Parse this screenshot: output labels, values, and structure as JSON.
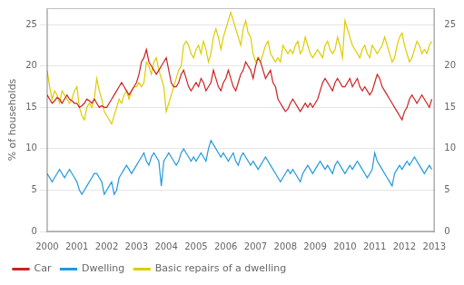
{
  "chart_data": {
    "type": "line",
    "ylabel": "% of households",
    "xlim": [
      2000,
      2013
    ],
    "xticks": [
      2000,
      2001,
      2002,
      2003,
      2004,
      2005,
      2006,
      2007,
      2008,
      2009,
      2010,
      2011,
      2012,
      2013
    ],
    "ylim": [
      0,
      27
    ],
    "yticks": [
      0,
      5,
      10,
      15,
      20,
      25
    ],
    "y2lim": [
      0,
      27
    ],
    "y2ticks": [
      0,
      5,
      10,
      15,
      20,
      25
    ],
    "grid": "y",
    "legend": "lower left",
    "x": [
      2000,
      2000.0833333333333,
      2000.1666666666667,
      2000.25,
      2000.3333333333333,
      2000.4166666666667,
      2000.5,
      2000.5833333333333,
      2000.6666666666667,
      2000.75,
      2000.8333333333333,
      2000.9166666666667,
      2001,
      2001.0833333333333,
      2001.1666666666667,
      2001.25,
      2001.3333333333333,
      2001.4166666666667,
      2001.5,
      2001.5833333333333,
      2001.6666666666667,
      2001.75,
      2001.8333333333333,
      2001.9166666666667,
      2002,
      2002.0833333333333,
      2002.1666666666667,
      2002.25,
      2002.3333333333333,
      2002.4166666666667,
      2002.5,
      2002.5833333333333,
      2002.6666666666667,
      2002.75,
      2002.8333333333333,
      2002.9166666666667,
      2003,
      2003.0833333333333,
      2003.1666666666667,
      2003.25,
      2003.3333333333333,
      2003.4166666666667,
      2003.5,
      2003.5833333333333,
      2003.6666666666667,
      2003.75,
      2003.8333333333333,
      2003.9166666666667,
      2004,
      2004.0833333333333,
      2004.1666666666667,
      2004.25,
      2004.3333333333333,
      2004.4166666666667,
      2004.5,
      2004.5833333333333,
      2004.6666666666667,
      2004.75,
      2004.8333333333333,
      2004.9166666666667,
      2005,
      2005.0833333333333,
      2005.1666666666667,
      2005.25,
      2005.3333333333333,
      2005.4166666666667,
      2005.5,
      2005.5833333333333,
      2005.6666666666667,
      2005.75,
      2005.8333333333333,
      2005.9166666666667,
      2006,
      2006.0833333333333,
      2006.1666666666667,
      2006.25,
      2006.3333333333333,
      2006.4166666666667,
      2006.5,
      2006.5833333333333,
      2006.6666666666667,
      2006.75,
      2006.8333333333333,
      2006.9166666666667,
      2007,
      2007.0833333333333,
      2007.1666666666667,
      2007.25,
      2007.3333333333333,
      2007.4166666666667,
      2007.5,
      2007.5833333333333,
      2007.6666666666667,
      2007.75,
      2007.8333333333333,
      2007.9166666666667,
      2008,
      2008.0833333333333,
      2008.1666666666667,
      2008.25,
      2008.3333333333333,
      2008.4166666666667,
      2008.5,
      2008.5833333333333,
      2008.6666666666667,
      2008.75,
      2008.8333333333333,
      2008.9166666666667,
      2009,
      2009.0833333333333,
      2009.1666666666667,
      2009.25,
      2009.3333333333333,
      2009.4166666666667,
      2009.5,
      2009.5833333333333,
      2009.6666666666667,
      2009.75,
      2009.8333333333333,
      2009.9166666666667,
      2010,
      2010.0833333333333,
      2010.1666666666667,
      2010.25,
      2010.3333333333333,
      2010.4166666666667,
      2010.5,
      2010.5833333333333,
      2010.6666666666667,
      2010.75,
      2010.8333333333333,
      2010.9166666666667,
      2011,
      2011.0833333333333,
      2011.1666666666667,
      2011.25,
      2011.3333333333333,
      2011.4166666666667,
      2011.5,
      2011.5833333333333,
      2011.6666666666667,
      2011.75,
      2011.8333333333333,
      2011.9166666666667,
      2012,
      2012.0833333333333,
      2012.1666666666667,
      2012.25,
      2012.3333333333333,
      2012.4166666666667,
      2012.5,
      2012.5833333333333,
      2012.6666666666667,
      2012.75,
      2012.8333333333333,
      2012.9166666666667
    ],
    "series": [
      {
        "name": "Car",
        "color": "#cc2222",
        "values": [
          16.5,
          16.0,
          15.5,
          15.8,
          16.2,
          16.0,
          15.5,
          16.0,
          16.5,
          16.0,
          15.8,
          15.5,
          15.5,
          15.0,
          15.2,
          15.5,
          16.0,
          15.8,
          15.5,
          16.0,
          15.5,
          15.0,
          15.2,
          15.0,
          15.0,
          15.5,
          16.0,
          16.5,
          17.0,
          17.5,
          18.0,
          17.5,
          17.0,
          16.5,
          17.0,
          17.5,
          18.0,
          19.0,
          20.5,
          21.0,
          22.0,
          20.5,
          20.0,
          19.5,
          19.0,
          19.5,
          20.0,
          20.5,
          21.0,
          19.5,
          18.0,
          17.5,
          17.5,
          18.0,
          19.0,
          19.5,
          18.5,
          17.5,
          17.0,
          17.5,
          18.0,
          17.5,
          18.5,
          18.0,
          17.0,
          17.5,
          18.0,
          19.5,
          18.5,
          17.5,
          17.0,
          18.0,
          18.5,
          19.5,
          18.5,
          17.5,
          17.0,
          18.0,
          19.0,
          19.5,
          20.5,
          20.0,
          19.5,
          18.5,
          20.0,
          21.0,
          20.5,
          19.5,
          18.5,
          19.0,
          19.5,
          18.0,
          17.5,
          16.0,
          15.5,
          15.0,
          14.5,
          14.8,
          15.5,
          16.0,
          15.5,
          15.0,
          14.5,
          15.0,
          15.5,
          15.0,
          15.5,
          15.0,
          15.5,
          16.0,
          17.0,
          18.0,
          18.5,
          18.0,
          17.5,
          17.0,
          18.0,
          18.5,
          18.0,
          17.5,
          17.5,
          18.0,
          18.5,
          17.5,
          18.0,
          18.5,
          17.5,
          17.0,
          17.5,
          17.0,
          16.5,
          17.0,
          18.0,
          19.0,
          18.5,
          17.5,
          17.0,
          16.5,
          16.0,
          15.5,
          15.0,
          14.5,
          14.0,
          13.5,
          14.5,
          15.0,
          16.0,
          16.5,
          16.0,
          15.5,
          16.0,
          16.5,
          16.0,
          15.5,
          15.0,
          16.0
        ]
      },
      {
        "name": "Dwelling",
        "color": "#2299dd",
        "values": [
          7.0,
          6.5,
          6.0,
          6.5,
          7.0,
          7.5,
          7.0,
          6.5,
          7.0,
          7.5,
          7.0,
          6.5,
          6.0,
          5.0,
          4.5,
          5.0,
          5.5,
          6.0,
          6.5,
          7.0,
          7.0,
          6.5,
          6.0,
          4.5,
          5.0,
          5.5,
          6.0,
          4.5,
          5.0,
          6.5,
          7.0,
          7.5,
          8.0,
          7.5,
          7.0,
          7.5,
          8.0,
          8.5,
          9.0,
          9.5,
          8.5,
          8.0,
          9.0,
          9.5,
          9.0,
          8.5,
          5.5,
          8.5,
          9.0,
          9.5,
          9.0,
          8.5,
          8.0,
          8.5,
          9.5,
          10.0,
          9.5,
          9.0,
          8.5,
          9.0,
          8.5,
          9.0,
          9.5,
          9.0,
          8.5,
          10.0,
          11.0,
          10.5,
          10.0,
          9.5,
          9.0,
          9.5,
          9.0,
          8.5,
          9.0,
          9.5,
          8.5,
          8.0,
          9.0,
          9.5,
          9.0,
          8.5,
          8.0,
          8.5,
          8.0,
          7.5,
          8.0,
          8.5,
          9.0,
          8.5,
          8.0,
          7.5,
          7.0,
          6.5,
          6.0,
          6.5,
          7.0,
          7.5,
          7.0,
          7.5,
          7.0,
          6.5,
          6.0,
          7.0,
          7.5,
          8.0,
          7.5,
          7.0,
          7.5,
          8.0,
          8.5,
          8.0,
          7.5,
          8.0,
          7.5,
          7.0,
          8.0,
          8.5,
          8.0,
          7.5,
          7.0,
          7.5,
          8.0,
          7.5,
          8.0,
          8.5,
          8.0,
          7.5,
          7.0,
          6.5,
          7.0,
          7.5,
          9.5,
          8.5,
          8.0,
          7.5,
          7.0,
          6.5,
          6.0,
          5.5,
          7.0,
          7.5,
          8.0,
          7.5,
          8.0,
          8.5,
          8.0,
          8.5,
          9.0,
          8.5,
          8.0,
          7.5,
          7.0,
          7.5,
          8.0,
          7.5
        ]
      },
      {
        "name": "Basic repairs of a dwelling",
        "color": "#ddcc00",
        "values": [
          19.5,
          17.5,
          16.0,
          17.0,
          16.5,
          15.5,
          17.0,
          16.5,
          16.0,
          15.5,
          16.0,
          17.0,
          17.5,
          15.0,
          14.0,
          13.5,
          15.0,
          15.5,
          15.0,
          16.0,
          18.5,
          17.0,
          16.0,
          14.5,
          14.0,
          13.5,
          13.0,
          14.0,
          15.0,
          16.0,
          15.5,
          16.5,
          17.0,
          16.0,
          17.0,
          17.5,
          17.5,
          18.0,
          17.5,
          18.0,
          20.5,
          20.0,
          19.0,
          20.5,
          21.0,
          19.5,
          18.5,
          17.5,
          14.5,
          15.5,
          16.5,
          17.5,
          18.5,
          19.5,
          20.0,
          22.5,
          23.0,
          22.5,
          21.5,
          21.0,
          22.0,
          22.5,
          21.5,
          23.0,
          22.0,
          20.5,
          21.5,
          23.5,
          24.5,
          23.5,
          22.0,
          23.5,
          24.5,
          25.5,
          26.5,
          25.5,
          24.5,
          23.5,
          22.5,
          24.5,
          25.5,
          24.0,
          23.5,
          21.5,
          20.5,
          21.0,
          20.5,
          21.5,
          22.5,
          23.0,
          21.5,
          21.0,
          20.5,
          21.0,
          20.5,
          22.5,
          22.0,
          21.5,
          22.0,
          21.5,
          22.5,
          23.0,
          21.5,
          22.0,
          23.5,
          22.5,
          21.5,
          21.0,
          21.5,
          22.0,
          21.5,
          21.0,
          22.5,
          23.0,
          22.0,
          21.5,
          22.0,
          23.5,
          22.5,
          21.0,
          25.5,
          24.5,
          23.5,
          22.5,
          22.0,
          21.5,
          21.0,
          22.0,
          22.5,
          21.5,
          21.0,
          22.5,
          22.0,
          21.5,
          22.0,
          22.5,
          23.5,
          22.5,
          21.5,
          20.5,
          21.0,
          22.5,
          23.5,
          24.0,
          22.5,
          21.5,
          20.5,
          21.0,
          22.0,
          23.0,
          22.5,
          21.5,
          22.0,
          21.5,
          22.5,
          23.0
        ]
      }
    ]
  }
}
